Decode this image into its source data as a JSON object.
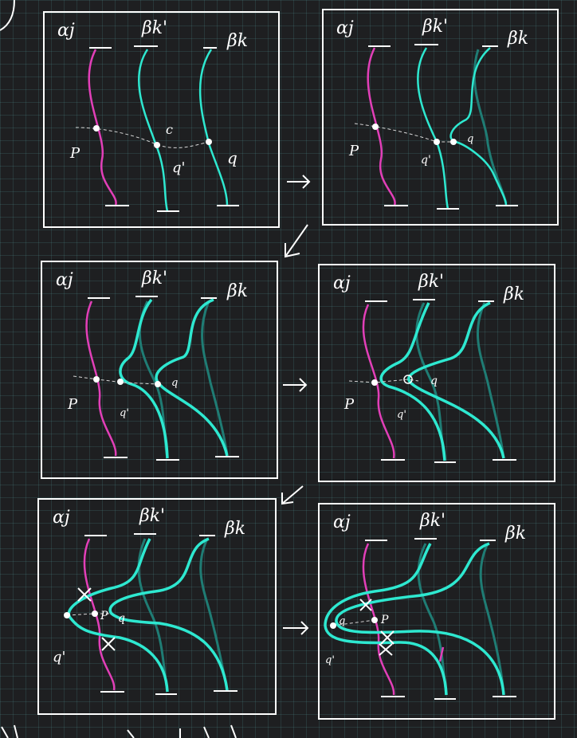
{
  "labels": {
    "alpha": "αj",
    "beta_prime": "βk'",
    "beta": "βk",
    "p": "P",
    "q": "q",
    "q_prime": "q'",
    "c": "c"
  },
  "colors": {
    "background": "#1e1f21",
    "grid": "#3f6e6e",
    "frame": "#ffffff",
    "alpha_curve": "#e23fb8",
    "beta_curve": "#2ee8d0",
    "beta_shadow": "#1f7c74",
    "path": "#d8d8d8"
  }
}
